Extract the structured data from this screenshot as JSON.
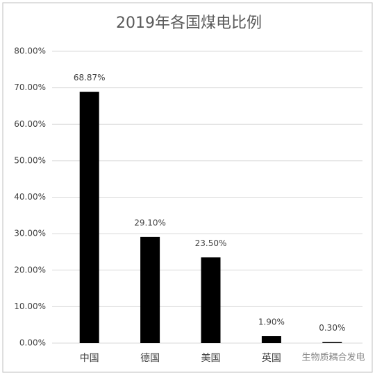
{
  "chart_data": {
    "type": "bar",
    "title": "2019年各国煤电比例",
    "categories": [
      "中国",
      "德国",
      "美国",
      "英国",
      null
    ],
    "values": [
      68.87,
      29.1,
      23.5,
      1.9,
      0.3
    ],
    "value_labels": [
      "68.87%",
      "29.10%",
      "23.50%",
      "1.90%",
      "0.30%"
    ],
    "color": "#000000",
    "ylim": [
      0,
      80
    ],
    "yticks": [
      {
        "value": 0,
        "label": "0.00%"
      },
      {
        "value": 10,
        "label": "10.00%"
      },
      {
        "value": 20,
        "label": "20.00%"
      },
      {
        "value": 30,
        "label": "30.00%"
      },
      {
        "value": 40,
        "label": "40.00%"
      },
      {
        "value": 50,
        "label": "50.00%"
      },
      {
        "value": 60,
        "label": "60.00%"
      },
      {
        "value": 70,
        "label": "70.00%"
      },
      {
        "value": 80,
        "label": "80.00%"
      }
    ],
    "grid": true,
    "watermark": "生物质耦合发电"
  }
}
